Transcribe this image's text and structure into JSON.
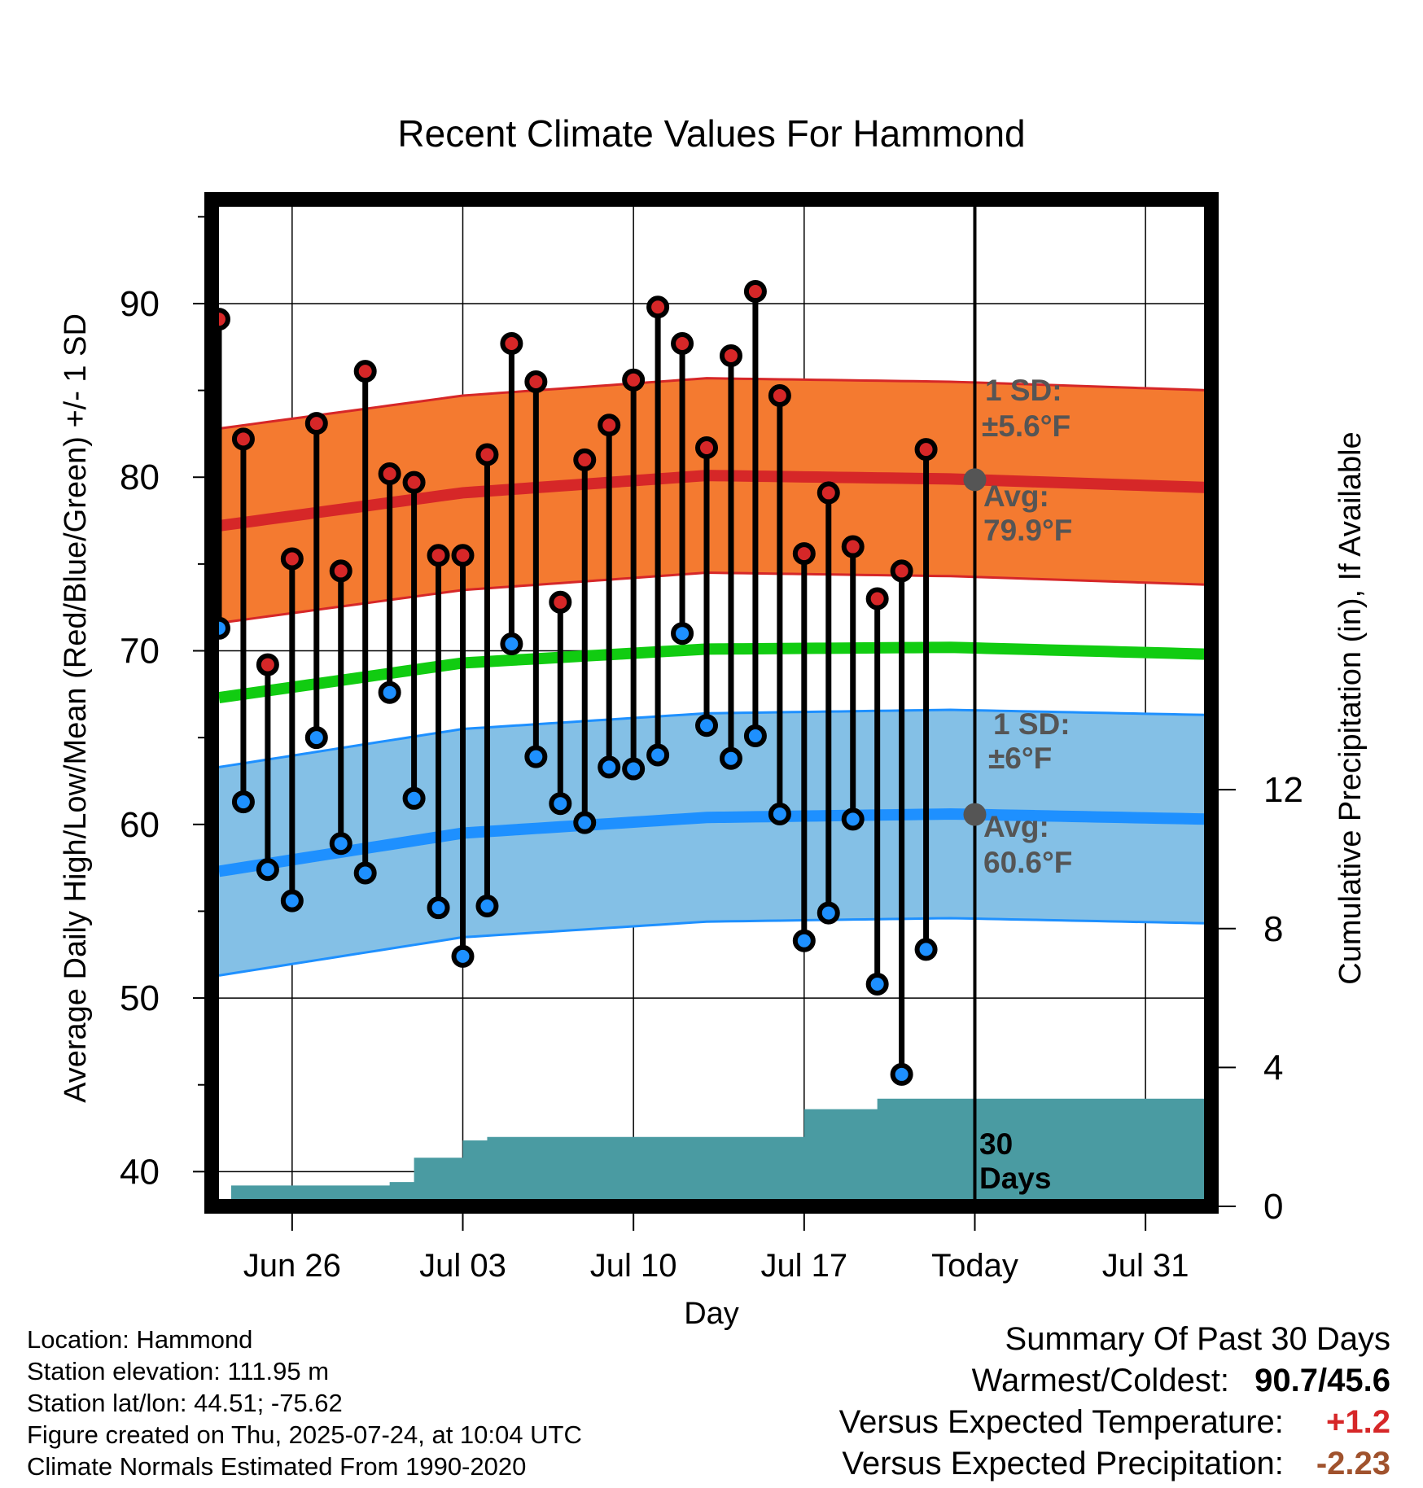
{
  "chart_data": {
    "type": "line",
    "title": "Recent Climate Values For Hammond",
    "xlabel": "Day",
    "ylabel": "Average Daily High/Low/Mean (Red/Blue/Green) +/- 1 SD",
    "y2label": "Cumulative Precipitation (in), If Available",
    "ylim": [
      38,
      96
    ],
    "y2lim": [
      0,
      29
    ],
    "y_ticks": [
      "40",
      "50",
      "60",
      "70",
      "80",
      "90"
    ],
    "y2_ticks": [
      "0",
      "4",
      "8",
      "12"
    ],
    "x_ticks": [
      {
        "day": 3,
        "label": "Jun 26"
      },
      {
        "day": 10,
        "label": "Jul 03"
      },
      {
        "day": 17,
        "label": "Jul 10"
      },
      {
        "day": 24,
        "label": "Jul 17"
      },
      {
        "day": 31,
        "label": "Today"
      },
      {
        "day": 38,
        "label": "Jul 31"
      }
    ],
    "x_range_days": [
      -0.3,
      40.7
    ],
    "today_day": 31,
    "daily_highs": [
      89.1,
      82.2,
      69.2,
      75.3,
      83.1,
      74.6,
      86.1,
      80.2,
      79.7,
      75.5,
      75.5,
      81.3,
      87.7,
      85.5,
      72.8,
      81.0,
      83.0,
      85.6,
      89.8,
      87.7,
      81.7,
      87.0,
      90.7,
      84.7,
      75.6,
      79.1,
      76.0,
      73.0,
      74.6,
      81.6
    ],
    "daily_lows": [
      71.3,
      61.3,
      57.4,
      55.6,
      65.0,
      58.9,
      57.2,
      67.6,
      61.5,
      55.2,
      52.4,
      55.3,
      70.4,
      63.9,
      61.2,
      60.1,
      63.3,
      63.2,
      64.0,
      71.0,
      65.7,
      63.8,
      65.1,
      60.6,
      53.3,
      54.9,
      60.3,
      50.8,
      45.6,
      52.8
    ],
    "series": [
      {
        "name": "Normal High",
        "color": "#d62728",
        "sd": 5.6,
        "x": [
          0,
          10,
          20,
          30,
          40.7
        ],
        "values": [
          77.2,
          79.1,
          80.1,
          79.9,
          79.4
        ]
      },
      {
        "name": "Normal Low",
        "color": "#1e90ff",
        "sd": 6.0,
        "x": [
          0,
          10,
          20,
          30,
          40.7
        ],
        "values": [
          57.3,
          59.5,
          60.4,
          60.6,
          60.3
        ]
      },
      {
        "name": "Normal Mean",
        "color": "#11cc11",
        "x": [
          0,
          10,
          20,
          30,
          40.7
        ],
        "values": [
          67.3,
          69.3,
          70.1,
          70.2,
          69.8
        ]
      }
    ],
    "precipitation_cumulative": {
      "color": "#4a9ba2",
      "x": [
        -0.3,
        0.5,
        1,
        2,
        3,
        4,
        5,
        6,
        7,
        8,
        9,
        10,
        11,
        12,
        13,
        14,
        15,
        16,
        17,
        18,
        19,
        20,
        21,
        22,
        23,
        24,
        25,
        26,
        27,
        28,
        29,
        30,
        31,
        40.7
      ],
      "values": [
        0,
        0.6,
        0.6,
        0.6,
        0.6,
        0.6,
        0.6,
        0.6,
        0.7,
        1.4,
        1.4,
        1.9,
        2.0,
        2.0,
        2.0,
        2.0,
        2.0,
        2.0,
        2.0,
        2.0,
        2.0,
        2.0,
        2.0,
        2.0,
        2.0,
        2.8,
        2.8,
        2.8,
        3.1,
        3.1,
        3.1,
        3.1,
        3.1,
        3.1
      ]
    },
    "grid": true,
    "annotations": {
      "high_sd_label": "1 SD:",
      "high_sd_value": "±5.6°F",
      "high_avg_label": "Avg:",
      "high_avg_value": "79.9°F",
      "low_sd_label": "1 SD:",
      "low_sd_value": "±6°F",
      "low_avg_label": "Avg:",
      "low_avg_value": "60.6°F",
      "days_label_line1": "30",
      "days_label_line2": "Days"
    }
  },
  "info": {
    "location": "Location: Hammond",
    "elevation": "Station elevation: 111.95 m",
    "latlon": "Station lat/lon: 44.51; -75.62",
    "created": "Figure created on Thu, 2025-07-24, at 10:04 UTC",
    "normals": "Climate Normals Estimated From 1990-2020"
  },
  "summary": {
    "heading": "Summary Of Past 30 Days",
    "warm_cold_label": "Warmest/Coldest:",
    "warm_cold_value": "90.7/45.6",
    "temp_label": "Versus Expected Temperature:",
    "temp_value": "+1.2",
    "temp_color": "#d62728",
    "precip_label": "Versus Expected Precipitation:",
    "precip_value": "-2.23",
    "precip_color": "#a0522d"
  }
}
